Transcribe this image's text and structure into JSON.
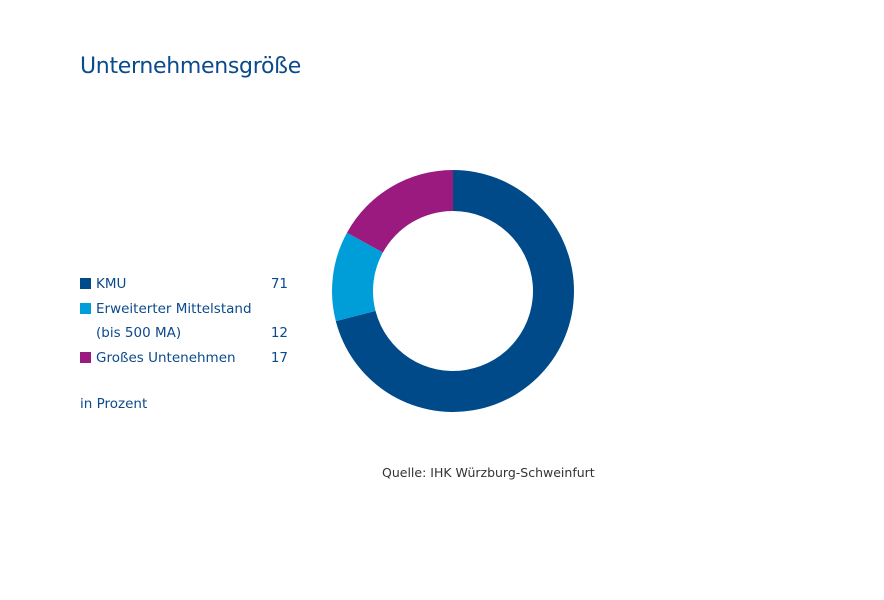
{
  "title": "Unternehmensgröße",
  "unit_note": "in Prozent",
  "source": "Quelle: IHK Würzburg-Schweinfurt",
  "legend": [
    {
      "label_lines": [
        "KMU"
      ],
      "value": "71"
    },
    {
      "label_lines": [
        "Erweiterter Mittelstand",
        "(bis 500 MA)"
      ],
      "value": "12"
    },
    {
      "label_lines": [
        "Großes Untenehmen"
      ],
      "value": "17"
    }
  ],
  "chart_data": {
    "type": "pie",
    "variant": "donut",
    "categories": [
      "KMU",
      "Erweiterter Mittelstand (bis 500 MA)",
      "Großes Untenehmen"
    ],
    "values": [
      71,
      12,
      17
    ],
    "colors": [
      "#004a8a",
      "#009ed8",
      "#9b1a80"
    ],
    "unit": "in Prozent"
  }
}
